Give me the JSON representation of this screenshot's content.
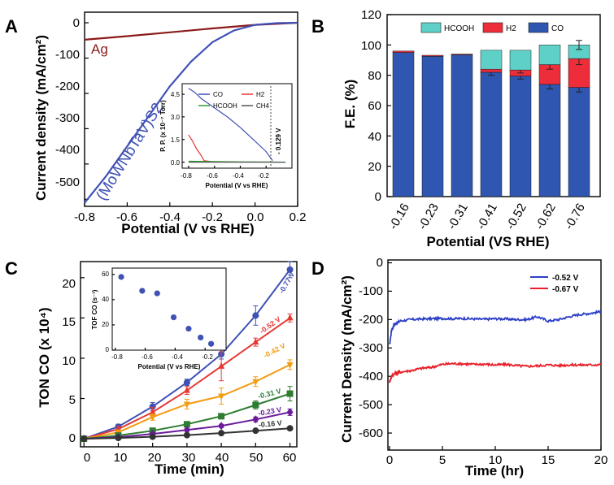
{
  "chart_data": [
    {
      "panel": "A",
      "type": "line",
      "xlabel": "Potential (V vs RHE)",
      "ylabel": "Current density (mA/cm²)",
      "xlim": [
        -0.8,
        0.2
      ],
      "ylim": [
        -520,
        30
      ],
      "xticks": [
        "-0.8",
        "-0.6",
        "-0.4",
        "-0.2",
        "0.0",
        "0.2"
      ],
      "yticks": [
        "0",
        "-100",
        "-200",
        "-300",
        "-400",
        "-500"
      ],
      "series": [
        {
          "name": "Ag",
          "color": "#8b1a1a",
          "x": [
            -0.8,
            -0.6,
            -0.4,
            -0.2,
            0.0,
            0.2
          ],
          "y": [
            -48,
            -38,
            -27,
            -16,
            -6,
            0
          ]
        },
        {
          "name": "(MoWNbTaV)S2",
          "color": "#3f51b5",
          "x": [
            -0.8,
            -0.7,
            -0.6,
            -0.5,
            -0.4,
            -0.3,
            -0.2,
            -0.1,
            0.0,
            0.1,
            0.2
          ],
          "y": [
            -510,
            -435,
            -350,
            -265,
            -180,
            -110,
            -55,
            -22,
            -6,
            -1,
            0
          ]
        }
      ],
      "inset": {
        "xlabel": "Potential (V vs RHE)",
        "ylabel": "P. P. (x 10⁻⁷ Torr)",
        "xlim": [
          -0.85,
          0.0
        ],
        "ylim": [
          -0.4,
          5.2
        ],
        "xticks": [
          "-0.8",
          "-0.6",
          "-0.4",
          "-0.2"
        ],
        "yticks": [
          "0.0",
          "1.5",
          "3.0",
          "4.5"
        ],
        "annotation": "- 0.129 V",
        "series": [
          {
            "name": "CO",
            "color": "#3f51b5",
            "x": [
              -0.8,
              -0.75,
              -0.7,
              -0.6,
              -0.5,
              -0.4,
              -0.3,
              -0.2,
              -0.15
            ],
            "y": [
              4.9,
              4.6,
              4.2,
              3.6,
              3.0,
              2.3,
              1.5,
              0.7,
              0.1
            ]
          },
          {
            "name": "H2",
            "color": "#e53935",
            "x": [
              -0.8,
              -0.77,
              -0.74,
              -0.7,
              -0.68,
              -0.6
            ],
            "y": [
              1.8,
              1.4,
              0.9,
              0.4,
              0.1,
              0.0
            ]
          },
          {
            "name": "HCOOH",
            "color": "#2e9e2e",
            "x": [
              -0.8,
              -0.6,
              -0.4,
              -0.2,
              -0.05
            ],
            "y": [
              0.06,
              0.04,
              0.02,
              0.01,
              0.0
            ]
          },
          {
            "name": "CH4",
            "color": "#555555",
            "x": [
              -0.8,
              -0.05
            ],
            "y": [
              0.0,
              0.0
            ]
          }
        ]
      }
    },
    {
      "panel": "B",
      "type": "bar",
      "xlabel": "Potential (VS RHE)",
      "ylabel": "F.E. (%)",
      "ylim": [
        0,
        120
      ],
      "yticks": [
        "0",
        "20",
        "40",
        "60",
        "80",
        "100",
        "120"
      ],
      "categories": [
        "-0.16",
        "-0.23",
        "-0.31",
        "-0.41",
        "-0.52",
        "-0.62",
        "-0.76"
      ],
      "stacked": true,
      "series": [
        {
          "name": "CO",
          "color": "#2f56b0",
          "values": [
            95,
            92.5,
            93.5,
            82,
            79.5,
            74,
            72
          ],
          "errors": [
            0,
            0,
            0,
            2,
            2,
            3,
            3
          ]
        },
        {
          "name": "H2",
          "color": "#ee2d3a",
          "values": [
            1,
            0.7,
            0.5,
            2,
            4,
            13,
            19
          ],
          "errors": [
            0,
            0,
            0,
            0,
            2,
            3,
            4
          ]
        },
        {
          "name": "HCOOH",
          "color": "#5fd0c8",
          "values": [
            0,
            0,
            0,
            12.5,
            13,
            13,
            9
          ],
          "errors": [
            0,
            0,
            0,
            0,
            0,
            0,
            3
          ]
        }
      ]
    },
    {
      "panel": "C",
      "type": "line",
      "xlabel": "Time (min)",
      "ylabel": "TON CO (x 10⁴)",
      "xlim": [
        -1,
        62
      ],
      "ylim": [
        -1,
        22
      ],
      "xticks": [
        "0",
        "10",
        "20",
        "30",
        "40",
        "50",
        "60"
      ],
      "yticks": [
        "0",
        "5",
        "10",
        "15",
        "20"
      ],
      "x": [
        0,
        10,
        20,
        30,
        40,
        50,
        60
      ],
      "series": [
        {
          "name": "-0.77 V",
          "color": "#3f51b5",
          "marker": "circle",
          "values": [
            0,
            1.5,
            4,
            7,
            10.5,
            15.3,
            21
          ],
          "errors": [
            0.2,
            0.3,
            0.5,
            0.4,
            0.6,
            1.2,
            1.0
          ]
        },
        {
          "name": "-0.52 V",
          "color": "#e53935",
          "marker": "triangle",
          "values": [
            0,
            1.2,
            3.3,
            6,
            9,
            12,
            15
          ],
          "errors": [
            0.2,
            0.3,
            0.6,
            0.5,
            1.8,
            0.5,
            0.5
          ]
        },
        {
          "name": "-0.42 V",
          "color": "#f39c12",
          "marker": "triangle-down",
          "values": [
            0,
            0.8,
            2.7,
            4.3,
            5.3,
            7.1,
            9.2
          ],
          "errors": [
            0.2,
            0.3,
            0.4,
            0.6,
            1.0,
            0.6,
            0.6
          ]
        },
        {
          "name": "-0.31 V",
          "color": "#2e7d32",
          "marker": "square",
          "values": [
            0,
            0.4,
            1.0,
            1.8,
            2.8,
            4.2,
            5.6
          ],
          "errors": [
            0.1,
            0.2,
            0.2,
            0.3,
            0.3,
            0.5,
            0.9
          ]
        },
        {
          "name": "-0.23 V",
          "color": "#6a1b9a",
          "marker": "diamond",
          "values": [
            0,
            0.2,
            0.6,
            1.1,
            1.6,
            2.4,
            3.3
          ],
          "errors": [
            0.1,
            0.1,
            0.2,
            0.2,
            0.2,
            0.3,
            0.4
          ]
        },
        {
          "name": "-0.16 V",
          "color": "#333333",
          "marker": "hexagon",
          "values": [
            0,
            0.1,
            0.25,
            0.45,
            0.7,
            1.0,
            1.3
          ],
          "errors": [
            0.05,
            0.05,
            0.1,
            0.1,
            0.1,
            0.1,
            0.1
          ]
        }
      ],
      "inset": {
        "xlabel": "Potential (V vs RHE)",
        "ylabel": "TOF CO (s⁻¹)",
        "xlim": [
          -0.82,
          -0.06
        ],
        "ylim": [
          0,
          65
        ],
        "xticks": [
          "-0.8",
          "-0.6",
          "-0.4",
          "-0.2"
        ],
        "yticks": [
          "0",
          "20",
          "40",
          "60"
        ],
        "series": [
          {
            "name": "TOF CO",
            "color": "#3f51b5",
            "x": [
              -0.76,
              -0.62,
              -0.52,
              -0.41,
              -0.31,
              -0.23,
              -0.16
            ],
            "y": [
              58,
              47,
              45,
              26,
              17,
              10,
              5
            ]
          }
        ]
      }
    },
    {
      "panel": "D",
      "type": "line",
      "xlabel": "Time (hr)",
      "ylabel": "Current Density (mA/cm²)",
      "xlim": [
        0,
        20
      ],
      "ylim": [
        -660,
        10
      ],
      "xticks": [
        "0",
        "5",
        "10",
        "15",
        "20"
      ],
      "yticks": [
        "0",
        "-100",
        "-200",
        "-300",
        "-400",
        "-500",
        "-600"
      ],
      "series": [
        {
          "name": "-0.52 V",
          "color": "#2c3fc7",
          "x": [
            0,
            0.2,
            0.5,
            1,
            2,
            3,
            4,
            5,
            6,
            7,
            8,
            9,
            10,
            11,
            12,
            13,
            14,
            15,
            16,
            17,
            18,
            19,
            20
          ],
          "y": [
            -290,
            -235,
            -215,
            -205,
            -200,
            -198,
            -197,
            -196,
            -197,
            -196,
            -198,
            -199,
            -197,
            -198,
            -200,
            -200,
            -190,
            -205,
            -200,
            -190,
            -182,
            -178,
            -172
          ]
        },
        {
          "name": "-0.67 V",
          "color": "#e8202a",
          "x": [
            0,
            0.2,
            0.5,
            1,
            2,
            3,
            4,
            5,
            6,
            7,
            8,
            9,
            10,
            11,
            12,
            13,
            14,
            15,
            16,
            17,
            18,
            19,
            20
          ],
          "y": [
            -420,
            -400,
            -390,
            -385,
            -380,
            -372,
            -368,
            -358,
            -355,
            -356,
            -358,
            -357,
            -360,
            -358,
            -362,
            -365,
            -363,
            -360,
            -362,
            -360,
            -360,
            -360,
            -358
          ]
        }
      ]
    }
  ]
}
